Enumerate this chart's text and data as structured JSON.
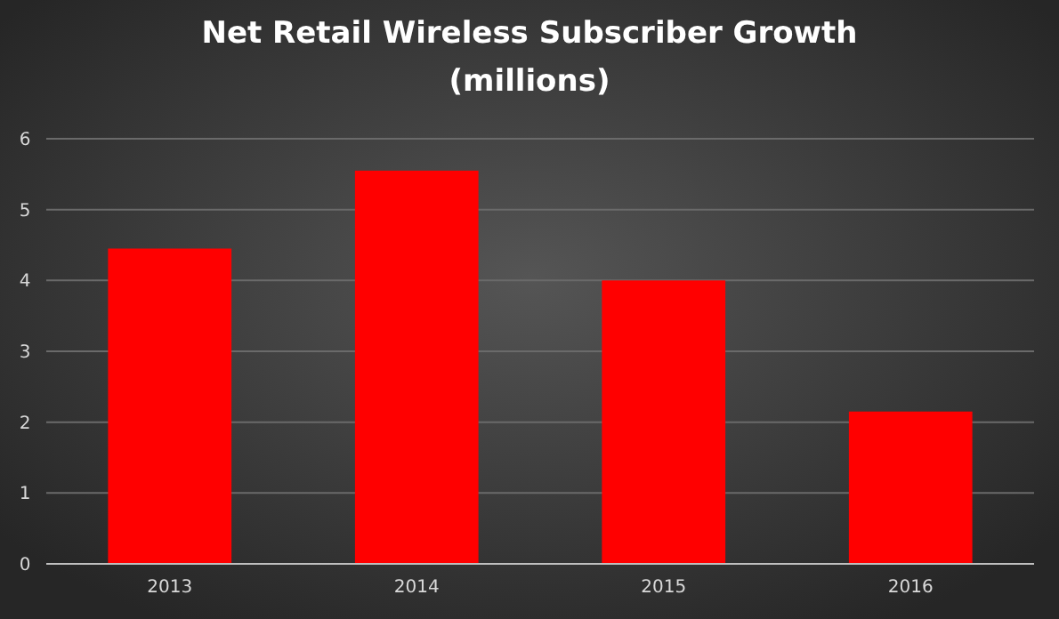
{
  "chart_data": {
    "type": "bar",
    "title": "Net Retail Wireless Subscriber Growth",
    "subtitle": "(millions)",
    "categories": [
      "2013",
      "2014",
      "2015",
      "2016"
    ],
    "values": [
      4.45,
      5.55,
      4.0,
      2.15
    ],
    "color": "#ff0000",
    "ylim": [
      0,
      6
    ],
    "yticks": [
      0,
      1,
      2,
      3,
      4,
      5,
      6
    ],
    "grid": "y"
  }
}
